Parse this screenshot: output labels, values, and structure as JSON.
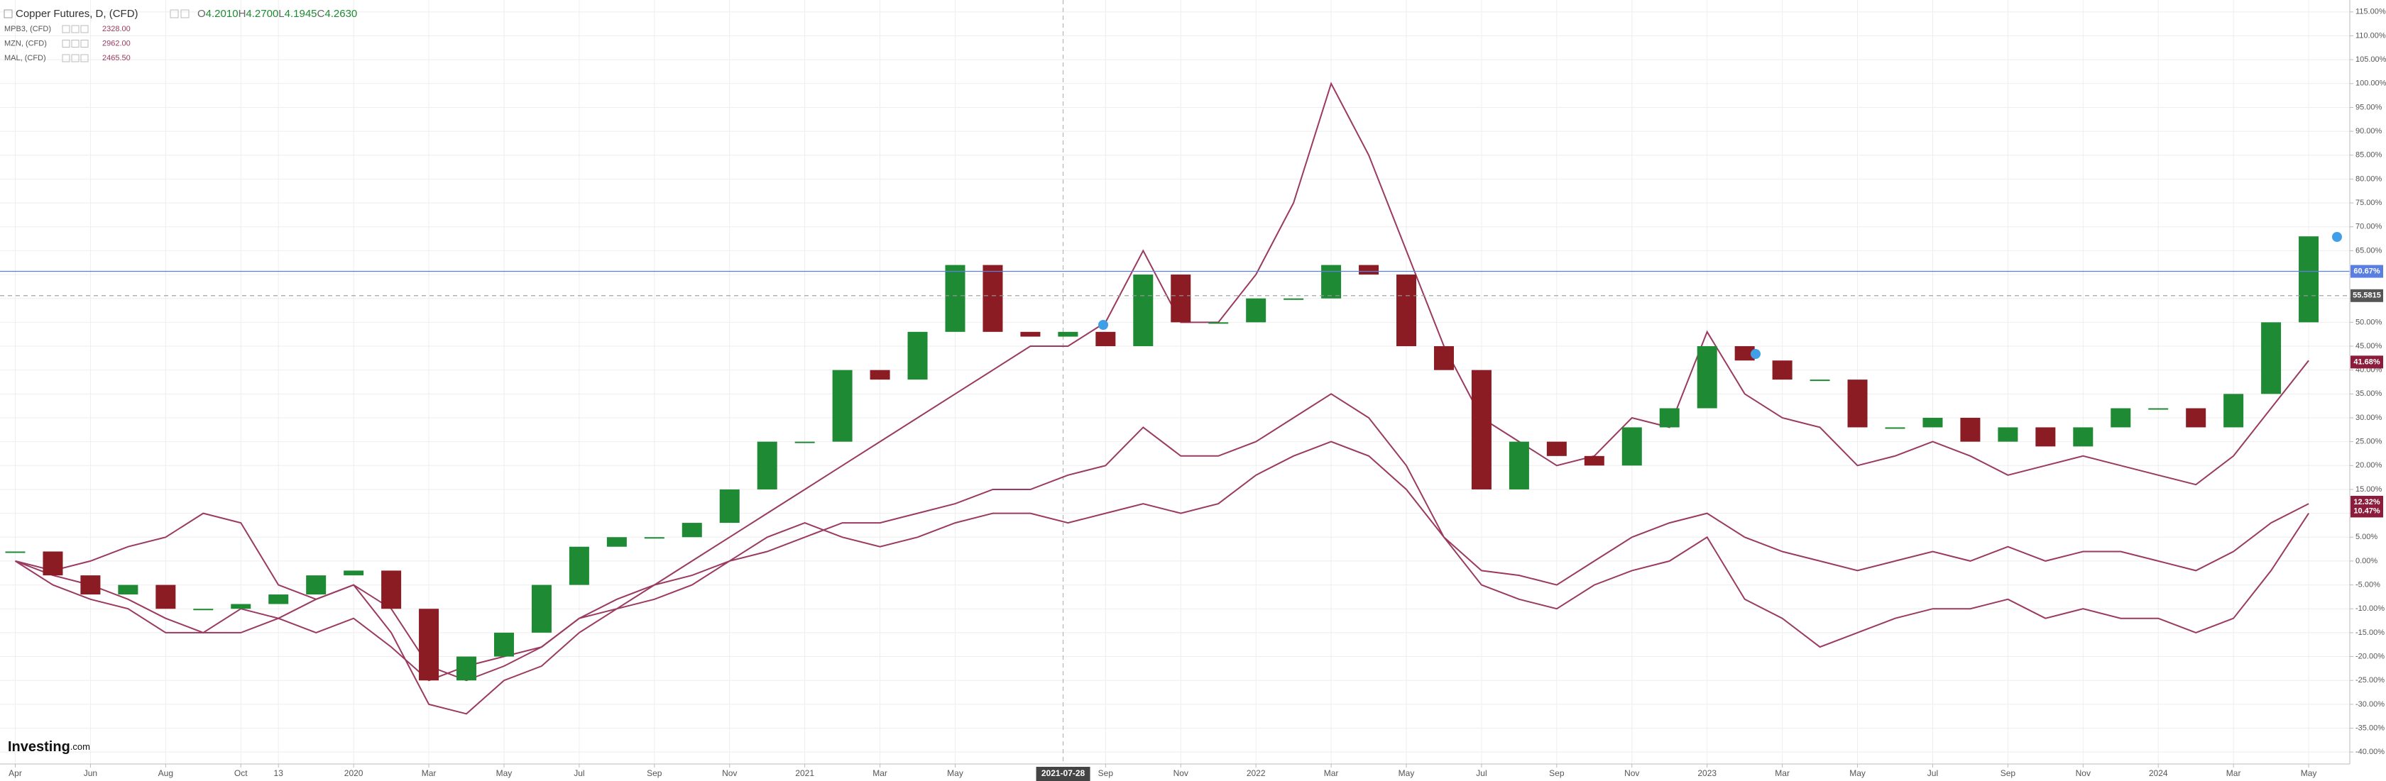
{
  "chart_data": {
    "type": "line",
    "title": "Copper Futures, D, (CFD)",
    "ohlc": [
      [
        "O",
        "4.2010"
      ],
      [
        "H",
        "4.2700"
      ],
      [
        "L",
        "4.1945"
      ],
      [
        "C",
        "4.2630"
      ]
    ],
    "x": [
      "2019-04",
      "2019-05",
      "2019-06",
      "2019-07",
      "2019-08",
      "2019-09",
      "2019-10",
      "2019-11",
      "2019-12",
      "2020-01",
      "2020-02",
      "2020-03",
      "2020-04",
      "2020-05",
      "2020-06",
      "2020-07",
      "2020-08",
      "2020-09",
      "2020-10",
      "2020-11",
      "2020-12",
      "2021-01",
      "2021-02",
      "2021-03",
      "2021-04",
      "2021-05",
      "2021-06",
      "2021-07",
      "2021-08",
      "2021-09",
      "2021-10",
      "2021-11",
      "2021-12",
      "2022-01",
      "2022-02",
      "2022-03",
      "2022-04",
      "2022-05",
      "2022-06",
      "2022-07",
      "2022-08",
      "2022-09",
      "2022-10",
      "2022-11",
      "2022-12",
      "2023-01",
      "2023-02",
      "2023-03",
      "2023-04",
      "2023-05",
      "2023-06",
      "2023-07",
      "2023-08",
      "2023-09",
      "2023-10",
      "2023-11",
      "2023-12",
      "2024-01",
      "2024-02",
      "2024-03",
      "2024-04",
      "2024-05"
    ],
    "series": [
      {
        "style": "candle",
        "up_color": "#1e8a34",
        "down_color": "#8c1c24",
        "values": [
          2,
          -3,
          -7,
          -5,
          -10,
          -10,
          -9,
          -7,
          -3,
          -2,
          -10,
          -25,
          -20,
          -15,
          -5,
          3,
          5,
          5,
          8,
          15,
          25,
          25,
          40,
          38,
          48,
          62,
          48,
          47,
          48,
          45,
          60,
          50,
          50,
          55,
          55,
          62,
          60,
          45,
          40,
          15,
          25,
          22,
          20,
          28,
          32,
          45,
          42,
          38,
          38,
          28,
          28,
          30,
          25,
          28,
          24,
          28,
          32,
          32,
          28,
          35,
          50,
          68
        ]
      },
      {
        "name": "MPB3, (CFD)",
        "last": "2328.00",
        "color": "#9a3a60",
        "values": [
          0,
          -5,
          -8,
          -10,
          -15,
          -15,
          -15,
          -12,
          -15,
          -12,
          -18,
          -25,
          -22,
          -20,
          -18,
          -12,
          -8,
          -5,
          -3,
          0,
          5,
          8,
          5,
          3,
          5,
          8,
          10,
          10,
          8,
          10,
          12,
          10,
          12,
          18,
          22,
          25,
          22,
          15,
          5,
          -2,
          -3,
          -5,
          0,
          5,
          8,
          10,
          5,
          2,
          0,
          -2,
          0,
          2,
          0,
          3,
          0,
          2,
          2,
          0,
          -2,
          2,
          8,
          12
        ]
      },
      {
        "name": "MZN, (CFD)",
        "last": "2962.00",
        "color": "#9a3a60",
        "values": [
          0,
          -2,
          0,
          3,
          5,
          10,
          8,
          -5,
          -8,
          -5,
          -10,
          -22,
          -25,
          -22,
          -18,
          -12,
          -10,
          -8,
          -5,
          0,
          2,
          5,
          8,
          8,
          10,
          12,
          15,
          15,
          18,
          20,
          28,
          22,
          22,
          25,
          30,
          35,
          30,
          20,
          5,
          -5,
          -8,
          -10,
          -5,
          -2,
          0,
          5,
          -8,
          -12,
          -18,
          -15,
          -12,
          -10,
          -10,
          -8,
          -12,
          -10,
          -12,
          -12,
          -15,
          -12,
          -2,
          10
        ]
      },
      {
        "name": "MAL, (CFD)",
        "last": "2465.50",
        "color": "#9a3a60",
        "values": [
          0,
          -3,
          -5,
          -8,
          -12,
          -15,
          -10,
          -12,
          -8,
          -5,
          -15,
          -30,
          -32,
          -25,
          -22,
          -15,
          -10,
          -5,
          0,
          5,
          10,
          15,
          20,
          25,
          30,
          35,
          40,
          45,
          45,
          50,
          65,
          50,
          50,
          60,
          75,
          100,
          85,
          65,
          45,
          30,
          25,
          20,
          22,
          30,
          28,
          48,
          35,
          30,
          28,
          20,
          22,
          25,
          22,
          18,
          20,
          22,
          20,
          18,
          16,
          22,
          32,
          42
        ]
      }
    ],
    "ylim": [
      -42.5,
      117.5
    ],
    "yticks": [
      {
        "value": 115,
        "label": "115.00%"
      },
      {
        "value": 110,
        "label": "110.00%"
      },
      {
        "value": 105,
        "label": "105.00%"
      },
      {
        "value": 100,
        "label": "100.00%"
      },
      {
        "value": 95,
        "label": "95.00%"
      },
      {
        "value": 90,
        "label": "90.00%"
      },
      {
        "value": 85,
        "label": "85.00%"
      },
      {
        "value": 80,
        "label": "80.00%"
      },
      {
        "value": 75,
        "label": "75.00%"
      },
      {
        "value": 70,
        "label": "70.00%"
      },
      {
        "value": 65,
        "label": "65.00%"
      },
      {
        "value": 60,
        "label": "60.00%"
      },
      {
        "value": 55,
        "label": "55.00%"
      },
      {
        "value": 50,
        "label": "50.00%"
      },
      {
        "value": 45,
        "label": "45.00%"
      },
      {
        "value": 40,
        "label": "40.00%"
      },
      {
        "value": 35,
        "label": "35.00%"
      },
      {
        "value": 30,
        "label": "30.00%"
      },
      {
        "value": 25,
        "label": "25.00%"
      },
      {
        "value": 20,
        "label": "20.00%"
      },
      {
        "value": 15,
        "label": "15.00%"
      },
      {
        "value": 10,
        "label": "10.00%"
      },
      {
        "value": 5,
        "label": "5.00%"
      },
      {
        "value": 0,
        "label": "0.00%"
      },
      {
        "value": -5,
        "label": "-5.00%"
      },
      {
        "value": -10,
        "label": "-10.00%"
      },
      {
        "value": -15,
        "label": "-15.00%"
      },
      {
        "value": -20,
        "label": "-20.00%"
      },
      {
        "value": -25,
        "label": "-25.00%"
      },
      {
        "value": -30,
        "label": "-30.00%"
      },
      {
        "value": -35,
        "label": "-35.00%"
      },
      {
        "value": -40,
        "label": "-40.00%"
      }
    ],
    "xticks": [
      {
        "value": "2019-04",
        "label": "Apr"
      },
      {
        "value": "2019-06",
        "label": "Jun"
      },
      {
        "value": "2019-08",
        "label": "Aug"
      },
      {
        "value": "2019-10",
        "label": "Oct"
      },
      {
        "value": "2019-11",
        "label": "13"
      },
      {
        "value": "2020-01",
        "label": "2020"
      },
      {
        "value": "2020-03",
        "label": "Mar"
      },
      {
        "value": "2020-05",
        "label": "May"
      },
      {
        "value": "2020-07",
        "label": "Jul"
      },
      {
        "value": "2020-09",
        "label": "Sep"
      },
      {
        "value": "2020-11",
        "label": "Nov"
      },
      {
        "value": "2021-01",
        "label": "2021"
      },
      {
        "value": "2021-03",
        "label": "Mar"
      },
      {
        "value": "2021-05",
        "label": "May"
      },
      {
        "value": "2021-09",
        "label": "Sep"
      },
      {
        "value": "2021-11",
        "label": "Nov"
      },
      {
        "value": "2022-01",
        "label": "2022"
      },
      {
        "value": "2022-03",
        "label": "Mar"
      },
      {
        "value": "2022-05",
        "label": "May"
      },
      {
        "value": "2022-07",
        "label": "Jul"
      },
      {
        "value": "2022-09",
        "label": "Sep"
      },
      {
        "value": "2022-11",
        "label": "Nov"
      },
      {
        "value": "2023-01",
        "label": "2023"
      },
      {
        "value": "2023-03",
        "label": "Mar"
      },
      {
        "value": "2023-05",
        "label": "May"
      },
      {
        "value": "2023-07",
        "label": "Jul"
      },
      {
        "value": "2023-09",
        "label": "Sep"
      },
      {
        "value": "2023-11",
        "label": "Nov"
      },
      {
        "value": "2024-01",
        "label": "2024"
      },
      {
        "value": "2024-03",
        "label": "Mar"
      },
      {
        "value": "2024-05",
        "label": "May"
      }
    ],
    "crosshair": "2021-07-28",
    "price_labels": [
      {
        "value": 60.67,
        "label": "60.67%",
        "color": "#5b7fe0",
        "line": "solid"
      },
      {
        "value": 55.5815,
        "label": "55.5815",
        "color": "#555555",
        "line": "dashed"
      },
      {
        "value": 41.68,
        "label": "41.68%",
        "color": "#8c1c3c"
      },
      {
        "value": 12.32,
        "label": "12.32%",
        "color": "#8c1c3c"
      },
      {
        "value": 10.47,
        "label": "10.47%",
        "color": "#8c1c3c"
      }
    ],
    "grid": true,
    "logo": [
      "Investing",
      ".com"
    ]
  }
}
